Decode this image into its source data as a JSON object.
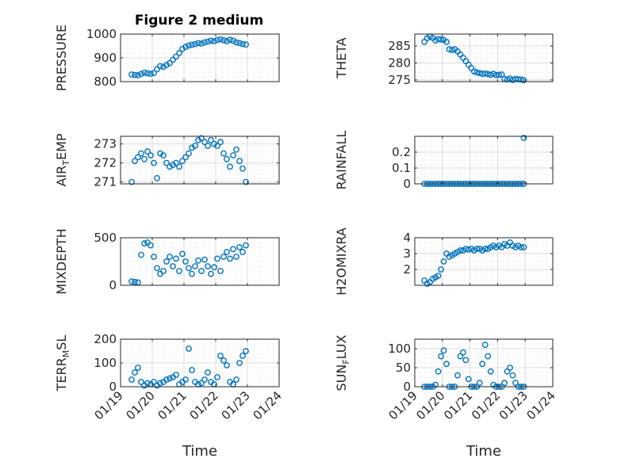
{
  "figure": {
    "title": "Figure 2 medium",
    "marker_color": "#0072BD"
  },
  "chart_data": [
    {
      "type": "scatter",
      "panel": "pressure",
      "ylabel": "PRESSURE",
      "ylim": [
        800,
        1000
      ],
      "yticks": [
        800,
        900,
        1000
      ],
      "xlim": [
        0,
        5
      ],
      "xticks": [
        0,
        1,
        2,
        3,
        4,
        5
      ],
      "xtick_labels": [],
      "grid": true,
      "x": [
        0.35,
        0.45,
        0.55,
        0.65,
        0.75,
        0.85,
        0.95,
        1.05,
        1.15,
        1.25,
        1.35,
        1.45,
        1.55,
        1.65,
        1.75,
        1.85,
        1.95,
        2.05,
        2.15,
        2.25,
        2.35,
        2.45,
        2.55,
        2.65,
        2.75,
        2.85,
        2.95,
        3.05,
        3.15,
        3.25,
        3.35,
        3.45,
        3.55,
        3.65,
        3.75,
        3.85,
        3.95
      ],
      "y": [
        830,
        828,
        827,
        832,
        838,
        835,
        833,
        836,
        852,
        865,
        862,
        870,
        878,
        892,
        905,
        920,
        938,
        946,
        952,
        955,
        958,
        962,
        960,
        965,
        968,
        972,
        970,
        975,
        978,
        974,
        970,
        976,
        972,
        965,
        962,
        958,
        956
      ]
    },
    {
      "type": "scatter",
      "panel": "theta",
      "ylabel": "THETA",
      "ylim": [
        274.5,
        288.5
      ],
      "yticks": [
        275,
        280,
        285
      ],
      "xlim": [
        0,
        5
      ],
      "xticks": [
        0,
        1,
        2,
        3,
        4,
        5
      ],
      "xtick_labels": [],
      "grid": true,
      "x": [
        0.35,
        0.45,
        0.55,
        0.65,
        0.75,
        0.85,
        0.95,
        1.05,
        1.15,
        1.25,
        1.35,
        1.45,
        1.55,
        1.65,
        1.75,
        1.85,
        1.95,
        2.05,
        2.15,
        2.25,
        2.35,
        2.45,
        2.55,
        2.65,
        2.75,
        2.85,
        2.95,
        3.05,
        3.15,
        3.25,
        3.35,
        3.45,
        3.55,
        3.65,
        3.75,
        3.85,
        3.95
      ],
      "y": [
        286.2,
        287.3,
        287.8,
        287.4,
        286.6,
        287.0,
        286.9,
        286.8,
        286.2,
        284.0,
        283.8,
        284.0,
        283.4,
        282.5,
        281.5,
        280.5,
        279.5,
        278.5,
        277.5,
        277.2,
        277.0,
        276.8,
        276.9,
        276.7,
        276.5,
        276.8,
        276.4,
        276.5,
        276.6,
        275.3,
        275.1,
        275.4,
        275.0,
        275.3,
        275.2,
        275.1,
        274.9
      ]
    },
    {
      "type": "scatter",
      "panel": "air_temp",
      "ylabel": "AIR_TEMP",
      "ylim": [
        270.9,
        273.4
      ],
      "yticks": [
        271,
        272,
        273
      ],
      "xlim": [
        0,
        5
      ],
      "xticks": [
        0,
        1,
        2,
        3,
        4,
        5
      ],
      "xtick_labels": [],
      "grid": true,
      "x": [
        0.35,
        0.45,
        0.55,
        0.65,
        0.75,
        0.85,
        0.95,
        1.05,
        1.15,
        1.25,
        1.35,
        1.45,
        1.55,
        1.65,
        1.75,
        1.85,
        1.95,
        2.05,
        2.15,
        2.25,
        2.35,
        2.45,
        2.55,
        2.65,
        2.75,
        2.85,
        2.95,
        3.05,
        3.15,
        3.25,
        3.35,
        3.45,
        3.55,
        3.65,
        3.75,
        3.85,
        3.95
      ],
      "y": [
        271.0,
        272.1,
        272.3,
        272.5,
        272.2,
        272.6,
        272.4,
        272.0,
        271.2,
        272.5,
        272.4,
        272.0,
        271.8,
        271.9,
        272.0,
        271.8,
        272.1,
        272.3,
        272.5,
        272.8,
        272.9,
        273.2,
        273.3,
        273.1,
        272.9,
        273.2,
        273.0,
        272.9,
        273.1,
        272.5,
        272.2,
        271.8,
        272.4,
        272.7,
        272.1,
        271.7,
        271.0
      ]
    },
    {
      "type": "scatter",
      "panel": "rainfall",
      "ylabel": "RAINFALL",
      "ylim": [
        0,
        0.3
      ],
      "yticks": [
        0,
        0.1,
        0.2
      ],
      "xlim": [
        0,
        5
      ],
      "xticks": [
        0,
        1,
        2,
        3,
        4,
        5
      ],
      "xtick_labels": [],
      "grid": true,
      "x": [
        0.35,
        0.45,
        0.55,
        0.65,
        0.75,
        0.85,
        0.95,
        1.05,
        1.15,
        1.25,
        1.35,
        1.45,
        1.55,
        1.65,
        1.75,
        1.85,
        1.95,
        2.05,
        2.15,
        2.25,
        2.35,
        2.45,
        2.55,
        2.65,
        2.75,
        2.85,
        2.95,
        3.05,
        3.15,
        3.25,
        3.35,
        3.45,
        3.55,
        3.65,
        3.75,
        3.85,
        3.95,
        3.95
      ],
      "y": [
        0,
        0,
        0,
        0,
        0,
        0,
        0,
        0,
        0,
        0,
        0,
        0,
        0,
        0,
        0,
        0,
        0,
        0,
        0,
        0,
        0,
        0,
        0,
        0,
        0,
        0,
        0,
        0,
        0,
        0,
        0,
        0,
        0,
        0,
        0,
        0,
        0,
        0.29
      ]
    },
    {
      "type": "scatter",
      "panel": "mixdepth",
      "ylabel": "MIXDEPTH",
      "ylim": [
        0,
        500
      ],
      "yticks": [
        0,
        500
      ],
      "xlim": [
        0,
        5
      ],
      "xticks": [
        0,
        1,
        2,
        3,
        4,
        5
      ],
      "xtick_labels": [],
      "grid": true,
      "x": [
        0.35,
        0.45,
        0.55,
        0.65,
        0.75,
        0.85,
        0.95,
        1.05,
        1.15,
        1.25,
        1.35,
        1.45,
        1.55,
        1.65,
        1.75,
        1.85,
        1.95,
        2.05,
        2.15,
        2.25,
        2.35,
        2.45,
        2.55,
        2.65,
        2.75,
        2.85,
        2.95,
        3.05,
        3.15,
        3.25,
        3.35,
        3.45,
        3.55,
        3.65,
        3.75,
        3.85,
        3.95
      ],
      "y": [
        40,
        35,
        30,
        320,
        440,
        450,
        420,
        300,
        180,
        120,
        150,
        250,
        300,
        200,
        280,
        150,
        330,
        250,
        180,
        120,
        200,
        260,
        150,
        270,
        200,
        120,
        190,
        280,
        150,
        300,
        350,
        280,
        380,
        300,
        400,
        350,
        420
      ]
    },
    {
      "type": "scatter",
      "panel": "h2omixra",
      "ylabel": "H2OMIXRA",
      "ylim": [
        1,
        4
      ],
      "yticks": [
        2,
        3,
        4
      ],
      "xlim": [
        0,
        5
      ],
      "xticks": [
        0,
        1,
        2,
        3,
        4,
        5
      ],
      "xtick_labels": [],
      "grid": true,
      "x": [
        0.35,
        0.45,
        0.55,
        0.65,
        0.75,
        0.85,
        0.95,
        1.05,
        1.15,
        1.25,
        1.35,
        1.45,
        1.55,
        1.65,
        1.75,
        1.85,
        1.95,
        2.05,
        2.15,
        2.25,
        2.35,
        2.45,
        2.55,
        2.65,
        2.75,
        2.85,
        2.95,
        3.05,
        3.15,
        3.25,
        3.35,
        3.45,
        3.55,
        3.65,
        3.75,
        3.85,
        3.95
      ],
      "y": [
        1.3,
        1.1,
        1.2,
        1.4,
        1.5,
        1.6,
        2.0,
        2.5,
        3.0,
        2.8,
        2.9,
        3.0,
        3.1,
        3.2,
        3.2,
        3.3,
        3.25,
        3.3,
        3.2,
        3.3,
        3.3,
        3.2,
        3.3,
        3.3,
        3.4,
        3.5,
        3.4,
        3.5,
        3.4,
        3.6,
        3.5,
        3.7,
        3.5,
        3.4,
        3.5,
        3.4,
        3.4
      ]
    },
    {
      "type": "scatter",
      "panel": "terr_msl",
      "ylabel": "TERR_MSL",
      "ylim": [
        0,
        200
      ],
      "yticks": [
        0,
        100,
        200
      ],
      "xlim": [
        0,
        5
      ],
      "xticks": [
        0,
        1,
        2,
        3,
        4,
        5
      ],
      "xtick_labels": [
        "01/19",
        "01/20",
        "01/21",
        "01/22",
        "01/23",
        "01/24"
      ],
      "xlabel": "Time",
      "grid": true,
      "x": [
        0.35,
        0.45,
        0.55,
        0.65,
        0.75,
        0.85,
        0.95,
        1.05,
        1.15,
        1.25,
        1.35,
        1.45,
        1.55,
        1.65,
        1.75,
        1.85,
        1.95,
        2.05,
        2.15,
        2.25,
        2.35,
        2.45,
        2.55,
        2.65,
        2.75,
        2.85,
        2.95,
        3.05,
        3.15,
        3.25,
        3.35,
        3.45,
        3.55,
        3.65,
        3.75,
        3.85,
        3.95
      ],
      "y": [
        30,
        60,
        80,
        20,
        5,
        15,
        10,
        20,
        5,
        15,
        20,
        30,
        35,
        40,
        50,
        10,
        20,
        30,
        160,
        70,
        20,
        10,
        15,
        30,
        60,
        20,
        10,
        40,
        130,
        110,
        90,
        20,
        10,
        30,
        100,
        130,
        150
      ]
    },
    {
      "type": "scatter",
      "panel": "sun_flux",
      "ylabel": "SUN_FLUX",
      "ylim": [
        0,
        125
      ],
      "yticks": [
        0,
        50,
        100
      ],
      "xlim": [
        0,
        5
      ],
      "xticks": [
        0,
        1,
        2,
        3,
        4,
        5
      ],
      "xtick_labels": [
        "01/19",
        "01/20",
        "01/21",
        "01/22",
        "01/23",
        "01/24"
      ],
      "xlabel": "Time",
      "grid": true,
      "x": [
        0.35,
        0.45,
        0.55,
        0.65,
        0.75,
        0.85,
        0.95,
        1.05,
        1.15,
        1.25,
        1.35,
        1.45,
        1.55,
        1.65,
        1.75,
        1.85,
        1.95,
        2.05,
        2.15,
        2.25,
        2.35,
        2.45,
        2.55,
        2.65,
        2.75,
        2.85,
        2.95,
        3.05,
        3.15,
        3.25,
        3.35,
        3.45,
        3.55,
        3.65,
        3.75,
        3.85,
        3.95
      ],
      "y": [
        0,
        0,
        0,
        0,
        5,
        40,
        80,
        95,
        60,
        0,
        0,
        0,
        30,
        80,
        90,
        70,
        20,
        0,
        0,
        0,
        10,
        60,
        110,
        80,
        40,
        5,
        0,
        0,
        0,
        10,
        40,
        50,
        30,
        10,
        0,
        0,
        0
      ]
    }
  ]
}
